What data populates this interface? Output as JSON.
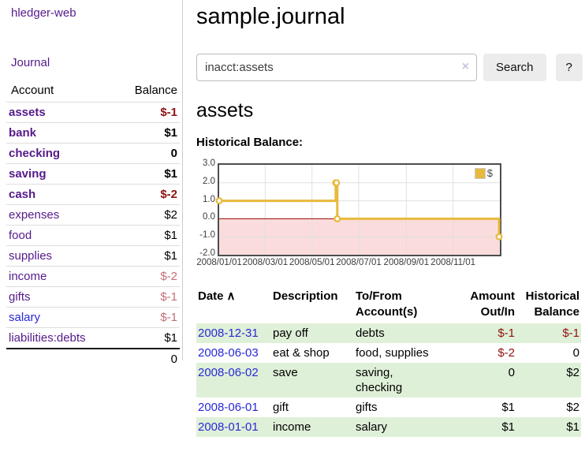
{
  "colors": {
    "link-purple": "#551a8b",
    "link-blue": "#2929d6",
    "neg-strong": "#8f1212",
    "neg-soft": "#c46e76",
    "row-green": "#dff0d8",
    "chart-gold": "#e8ba3c",
    "chart-neg-fill": "#fbdcdc",
    "chart-zero": "#990000",
    "divider": "#cccccc",
    "button-bg": "#ececec"
  },
  "sidebar": {
    "brand": "hledger-web",
    "nav_journal": "Journal",
    "accounts": {
      "col_account": "Account",
      "col_balance": "Balance",
      "rows": [
        {
          "name": "assets",
          "indent": 1,
          "bold": true,
          "balance": "$-1",
          "balance_class": "neg-strong"
        },
        {
          "name": "bank",
          "indent": 2,
          "bold": true,
          "balance": "$1",
          "balance_class": ""
        },
        {
          "name": "checking",
          "indent": 3,
          "bold": true,
          "balance": "0",
          "balance_class": ""
        },
        {
          "name": "saving",
          "indent": 3,
          "bold": true,
          "balance": "$1",
          "balance_class": ""
        },
        {
          "name": "cash",
          "indent": 2,
          "bold": true,
          "balance": "$-2",
          "balance_class": "neg-strong"
        },
        {
          "name": "expenses",
          "indent": 1,
          "bold": false,
          "balance": "$2",
          "balance_class": ""
        },
        {
          "name": "food",
          "indent": 2,
          "bold": false,
          "balance": "$1",
          "balance_class": ""
        },
        {
          "name": "supplies",
          "indent": 2,
          "bold": false,
          "balance": "$1",
          "balance_class": ""
        },
        {
          "name": "income",
          "indent": 1,
          "bold": false,
          "balance": "$-2",
          "balance_class": "neg-soft"
        },
        {
          "name": "gifts",
          "indent": 2,
          "bold": false,
          "balance": "$-1",
          "balance_class": "neg-soft"
        },
        {
          "name": "salary",
          "indent": 2,
          "bold": false,
          "balance": "$-1",
          "balance_class": "neg-soft",
          "link": "unvisited"
        },
        {
          "name": "liabilities:debts",
          "indent": 1,
          "bold": false,
          "balance": "$1",
          "balance_class": ""
        }
      ],
      "total": "0"
    }
  },
  "main": {
    "title": "sample.journal",
    "search": {
      "value": "inacct:assets",
      "clear_icon": "×",
      "button": "Search",
      "help_button": "?"
    },
    "heading": "assets",
    "chart_title": "Historical Balance:"
  },
  "chart_data": {
    "type": "line",
    "step": true,
    "title": "Historical Balance",
    "legend": {
      "label": "$",
      "position": "top-right"
    },
    "ylim": [
      -2,
      3
    ],
    "yticks": [
      "3.0",
      "2.0",
      "1.0",
      "0.0",
      "-1.0",
      "-2.0"
    ],
    "grid_y": [
      2,
      1,
      -1
    ],
    "x_max_day": 366,
    "xticks": [
      {
        "label": "2008/01/01",
        "day": 0
      },
      {
        "label": "2008/03/01",
        "day": 60
      },
      {
        "label": "2008/05/01",
        "day": 121
      },
      {
        "label": "2008/07/01",
        "day": 182
      },
      {
        "label": "2008/09/01",
        "day": 244
      },
      {
        "label": "2008/11/01",
        "day": 305
      }
    ],
    "series": [
      {
        "name": "$",
        "points": [
          {
            "date": "2008-01-01",
            "day": 0,
            "y": 1
          },
          {
            "date": "2008-06-01",
            "day": 152,
            "y": 2
          },
          {
            "date": "2008-06-02",
            "day": 153,
            "y": 2
          },
          {
            "date": "2008-06-03",
            "day": 154,
            "y": 0
          },
          {
            "date": "2008-12-31",
            "day": 365,
            "y": -1
          }
        ]
      }
    ]
  },
  "register": {
    "headers": {
      "date": "Date",
      "sort_icon": "∧",
      "description": "Description",
      "accounts": "To/From Account(s)",
      "amount": "Amount Out/In",
      "balance": "Historical Balance"
    },
    "rows": [
      {
        "date": "2008-12-31",
        "description": "pay off",
        "accounts": "debts",
        "amount": "$-1",
        "amount_neg": true,
        "balance": "$-1",
        "balance_neg": true,
        "highlight": true
      },
      {
        "date": "2008-06-03",
        "description": "eat & shop",
        "accounts": "food, supplies",
        "amount": "$-2",
        "amount_neg": true,
        "balance": "0",
        "balance_neg": false,
        "highlight": false
      },
      {
        "date": "2008-06-02",
        "description": "save",
        "accounts": "saving, checking",
        "amount": "0",
        "amount_neg": false,
        "balance": "$2",
        "balance_neg": false,
        "highlight": true
      },
      {
        "date": "2008-06-01",
        "description": "gift",
        "accounts": "gifts",
        "amount": "$1",
        "amount_neg": false,
        "balance": "$2",
        "balance_neg": false,
        "highlight": false
      },
      {
        "date": "2008-01-01",
        "description": "income",
        "accounts": "salary",
        "amount": "$1",
        "amount_neg": false,
        "balance": "$1",
        "balance_neg": false,
        "highlight": true
      }
    ]
  }
}
